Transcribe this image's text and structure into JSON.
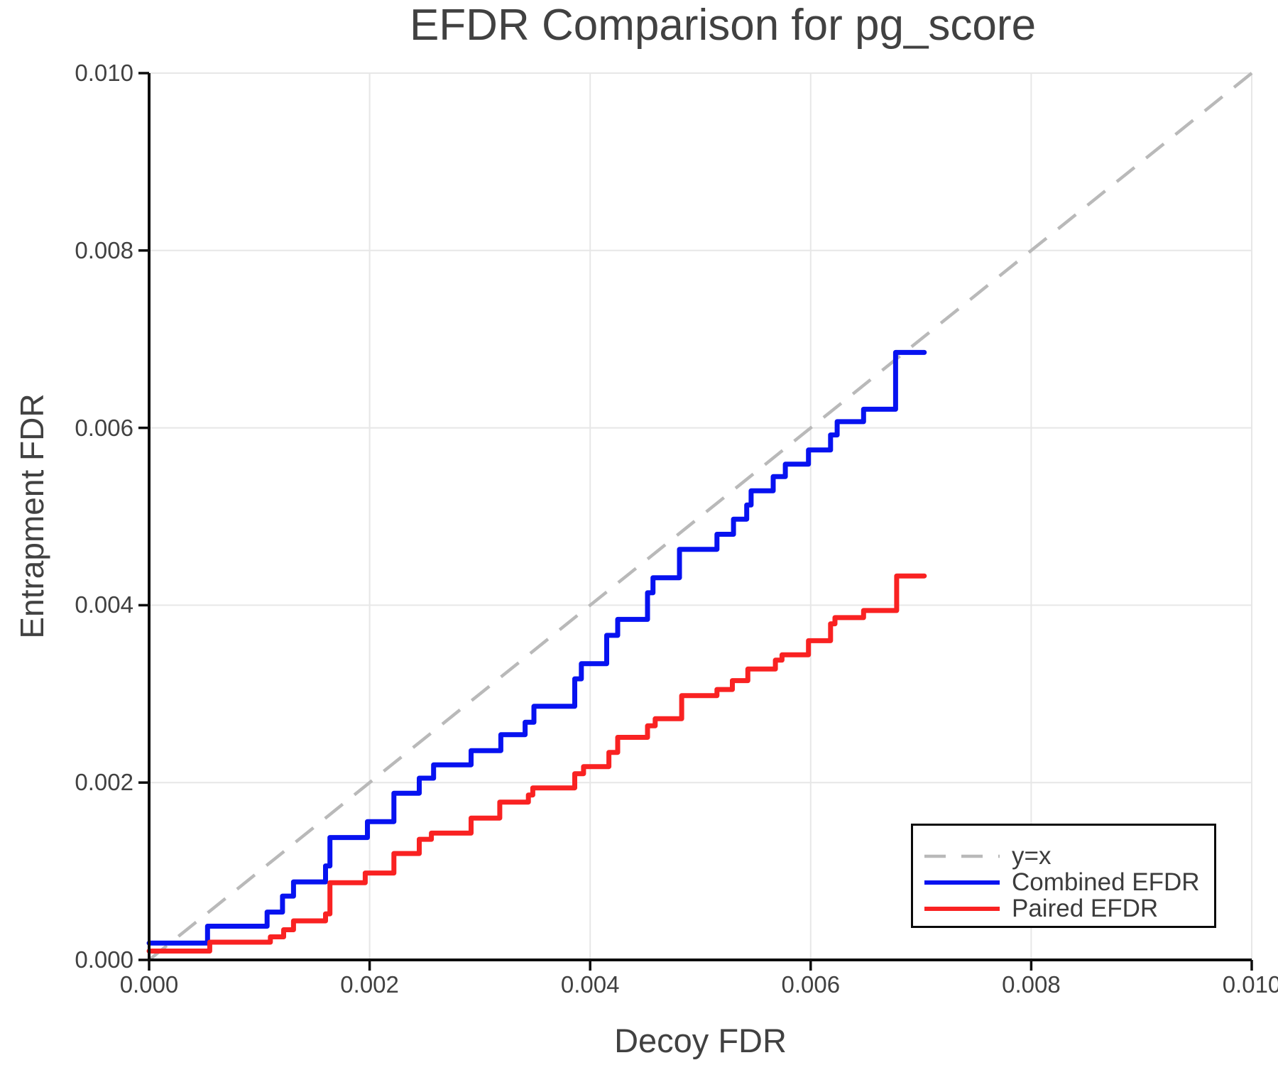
{
  "chart_data": {
    "type": "line",
    "title": "EFDR Comparison for pg_score",
    "xlabel": "Decoy FDR",
    "ylabel": "Entrapment FDR",
    "xlim": [
      0.0,
      0.01
    ],
    "ylim": [
      0.0,
      0.01
    ],
    "grid": true,
    "legend_position": "lower right",
    "x_ticks": [
      {
        "v": 0.0,
        "label": "0.000"
      },
      {
        "v": 0.002,
        "label": "0.002"
      },
      {
        "v": 0.004,
        "label": "0.004"
      },
      {
        "v": 0.006,
        "label": "0.006"
      },
      {
        "v": 0.008,
        "label": "0.008"
      },
      {
        "v": 0.01,
        "label": "0.010"
      }
    ],
    "y_ticks": [
      {
        "v": 0.0,
        "label": "0.000"
      },
      {
        "v": 0.002,
        "label": "0.002"
      },
      {
        "v": 0.004,
        "label": "0.004"
      },
      {
        "v": 0.006,
        "label": "0.006"
      },
      {
        "v": 0.008,
        "label": "0.008"
      },
      {
        "v": 0.01,
        "label": "0.010"
      }
    ],
    "reference_line": {
      "name": "y=x",
      "from": [
        0.0,
        0.0
      ],
      "to": [
        0.01,
        0.01
      ],
      "dashed": true,
      "color": "#b9b9b9"
    },
    "series": [
      {
        "name": "Combined EFDR",
        "color": "#0712f0",
        "style": "step-post",
        "start_y": 0.00019,
        "end_x": 0.00703,
        "steps": [
          [
            0.00053,
            0.00038
          ],
          [
            0.00107,
            0.00054
          ],
          [
            0.00121,
            0.00072
          ],
          [
            0.00131,
            0.00088
          ],
          [
            0.0016,
            0.00106
          ],
          [
            0.00164,
            0.00138
          ],
          [
            0.00198,
            0.00156
          ],
          [
            0.00222,
            0.00188
          ],
          [
            0.00245,
            0.00205
          ],
          [
            0.00258,
            0.0022
          ],
          [
            0.00292,
            0.00236
          ],
          [
            0.00319,
            0.00254
          ],
          [
            0.00341,
            0.00268
          ],
          [
            0.00349,
            0.00286
          ],
          [
            0.00386,
            0.00317
          ],
          [
            0.00392,
            0.00334
          ],
          [
            0.00415,
            0.00366
          ],
          [
            0.00425,
            0.00384
          ],
          [
            0.00452,
            0.00414
          ],
          [
            0.00457,
            0.00431
          ],
          [
            0.00481,
            0.00463
          ],
          [
            0.00515,
            0.0048
          ],
          [
            0.0053,
            0.00497
          ],
          [
            0.00542,
            0.00513
          ],
          [
            0.00546,
            0.00529
          ],
          [
            0.00566,
            0.00545
          ],
          [
            0.00577,
            0.00559
          ],
          [
            0.00598,
            0.00575
          ],
          [
            0.00618,
            0.00592
          ],
          [
            0.00624,
            0.00607
          ],
          [
            0.00648,
            0.00621
          ],
          [
            0.00677,
            0.00685
          ]
        ]
      },
      {
        "name": "Paired EFDR",
        "color": "#f92222",
        "style": "step-post",
        "start_y": 0.0001,
        "end_x": 0.00703,
        "steps": [
          [
            0.00055,
            0.0002
          ],
          [
            0.0011,
            0.00026
          ],
          [
            0.00122,
            0.00034
          ],
          [
            0.00131,
            0.00044
          ],
          [
            0.0016,
            0.00052
          ],
          [
            0.00164,
            0.00087
          ],
          [
            0.00196,
            0.00098
          ],
          [
            0.00222,
            0.0012
          ],
          [
            0.00245,
            0.00136
          ],
          [
            0.00256,
            0.00143
          ],
          [
            0.00292,
            0.0016
          ],
          [
            0.00318,
            0.00178
          ],
          [
            0.00344,
            0.00186
          ],
          [
            0.00348,
            0.00194
          ],
          [
            0.00386,
            0.0021
          ],
          [
            0.00394,
            0.00218
          ],
          [
            0.00417,
            0.00234
          ],
          [
            0.00425,
            0.00251
          ],
          [
            0.00452,
            0.00264
          ],
          [
            0.00459,
            0.00272
          ],
          [
            0.00483,
            0.00298
          ],
          [
            0.00515,
            0.00305
          ],
          [
            0.00529,
            0.00315
          ],
          [
            0.00543,
            0.00328
          ],
          [
            0.00568,
            0.00338
          ],
          [
            0.00574,
            0.00344
          ],
          [
            0.00598,
            0.0036
          ],
          [
            0.00618,
            0.00379
          ],
          [
            0.00622,
            0.00386
          ],
          [
            0.00648,
            0.00394
          ],
          [
            0.00678,
            0.00433
          ]
        ]
      }
    ],
    "style": {
      "grid_color": "#e7e7e7",
      "spine_color": "#0d0d0d",
      "text_color": "#414141",
      "background": "#ffffff"
    }
  }
}
